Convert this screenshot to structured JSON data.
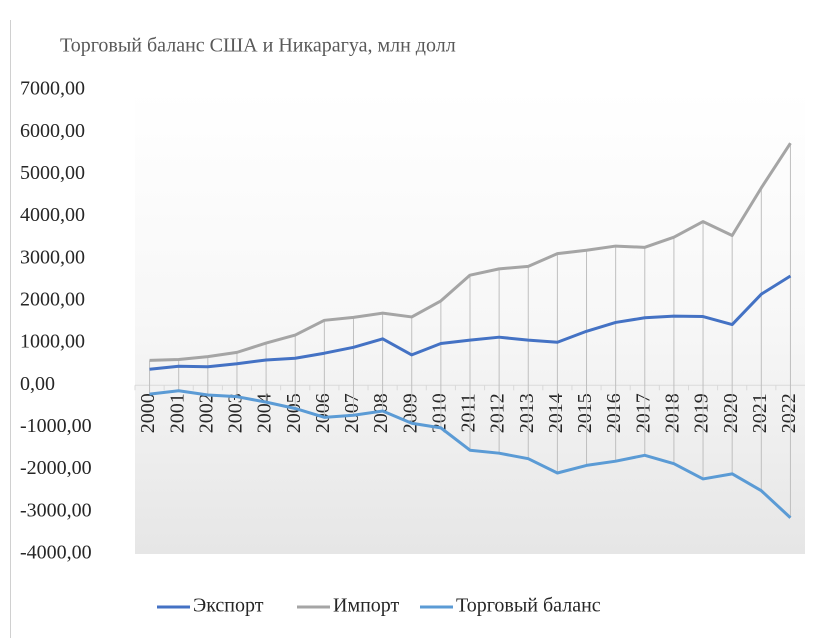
{
  "chart_data": {
    "type": "line",
    "title": "Торговый баланс США и Никарагуа, млн долл",
    "categories": [
      "2000",
      "2001",
      "2002",
      "2003",
      "2004",
      "2005",
      "2006",
      "2007",
      "2008",
      "2009",
      "2010",
      "2011",
      "2012",
      "2013",
      "2014",
      "2015",
      "2016",
      "2017",
      "2018",
      "2019",
      "2020",
      "2021",
      "2022"
    ],
    "series": [
      {
        "name": "Экспорт",
        "color": "#4472c4",
        "values": [
          380,
          450,
          440,
          510,
          600,
          640,
          760,
          900,
          1100,
          720,
          990,
          1070,
          1140,
          1070,
          1020,
          1280,
          1490,
          1600,
          1640,
          1630,
          1440,
          2160,
          2590
        ]
      },
      {
        "name": "Импорт",
        "color": "#a5a5a5",
        "values": [
          590,
          610,
          680,
          780,
          1000,
          1190,
          1540,
          1610,
          1710,
          1620,
          2000,
          2610,
          2760,
          2820,
          3120,
          3200,
          3300,
          3270,
          3510,
          3880,
          3550,
          4680,
          5740
        ]
      },
      {
        "name": "Торговый баланс",
        "color": "#5b9bd5",
        "values": [
          -210,
          -130,
          -230,
          -270,
          -400,
          -550,
          -760,
          -710,
          -610,
          -900,
          -1010,
          -1540,
          -1610,
          -1740,
          -2080,
          -1900,
          -1800,
          -1660,
          -1860,
          -2220,
          -2100,
          -2500,
          -3140
        ]
      }
    ],
    "ylim": [
      -4000,
      7000
    ],
    "yticks": [
      {
        "value": -4000,
        "label": "-4000,00"
      },
      {
        "value": -3000,
        "label": "-3000,00"
      },
      {
        "value": -2000,
        "label": "-2000,00"
      },
      {
        "value": -1000,
        "label": "-1000,00"
      },
      {
        "value": 0,
        "label": "0,00"
      },
      {
        "value": 1000,
        "label": "1000,00"
      },
      {
        "value": 2000,
        "label": "2000,00"
      },
      {
        "value": 3000,
        "label": "3000,00"
      },
      {
        "value": 4000,
        "label": "4000,00"
      },
      {
        "value": 5000,
        "label": "5000,00"
      },
      {
        "value": 6000,
        "label": "6000,00"
      },
      {
        "value": 7000,
        "label": "7000,00"
      }
    ],
    "high_low_lines": true,
    "legend": "bottom"
  }
}
